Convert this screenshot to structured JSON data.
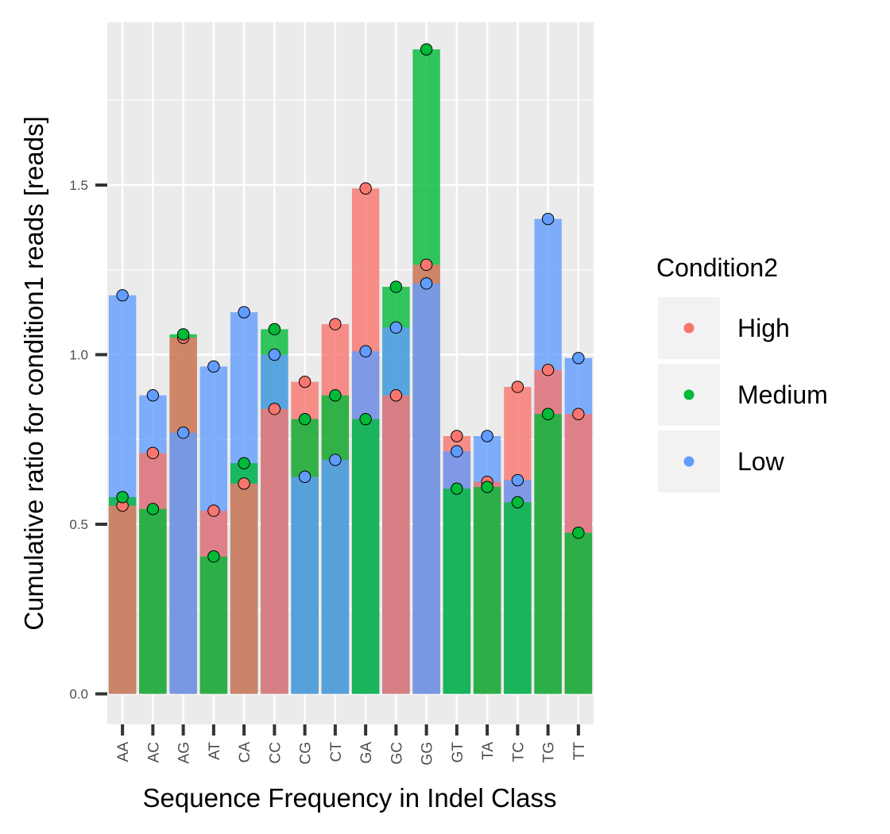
{
  "chart_data": {
    "type": "bar",
    "xlabel": "Sequence Frequency in Indel Class",
    "ylabel": "Cumulative ratio for condition1 reads [reads]",
    "ylim": [
      -0.09,
      1.98
    ],
    "y_ticks": [
      0.0,
      0.5,
      1.0,
      1.5
    ],
    "y_tick_labels": [
      "0.0",
      "0.5",
      "1.0",
      "1.5"
    ],
    "grid": true,
    "legend": {
      "title": "Condition2",
      "position": "right"
    },
    "categories": [
      "AA",
      "AC",
      "AG",
      "AT",
      "CA",
      "CC",
      "CG",
      "CT",
      "GA",
      "GC",
      "GG",
      "GT",
      "TA",
      "TC",
      "TG",
      "TT"
    ],
    "series": [
      {
        "name": "High",
        "color": "#F8766D",
        "values": [
          0.555,
          0.71,
          1.05,
          0.54,
          0.62,
          0.84,
          0.92,
          1.09,
          1.49,
          0.88,
          1.265,
          0.76,
          0.625,
          0.905,
          0.955,
          0.825
        ]
      },
      {
        "name": "Medium",
        "color": "#00BA38",
        "values": [
          0.58,
          0.545,
          1.06,
          0.405,
          0.68,
          1.075,
          0.81,
          0.88,
          0.81,
          1.2,
          1.9,
          0.605,
          0.61,
          0.565,
          0.825,
          0.475
        ]
      },
      {
        "name": "Low",
        "color": "#619CFF",
        "values": [
          1.175,
          0.88,
          0.77,
          0.965,
          1.125,
          1.0,
          0.64,
          0.69,
          1.01,
          1.08,
          1.21,
          0.715,
          0.76,
          0.63,
          1.4,
          0.99
        ]
      }
    ]
  }
}
